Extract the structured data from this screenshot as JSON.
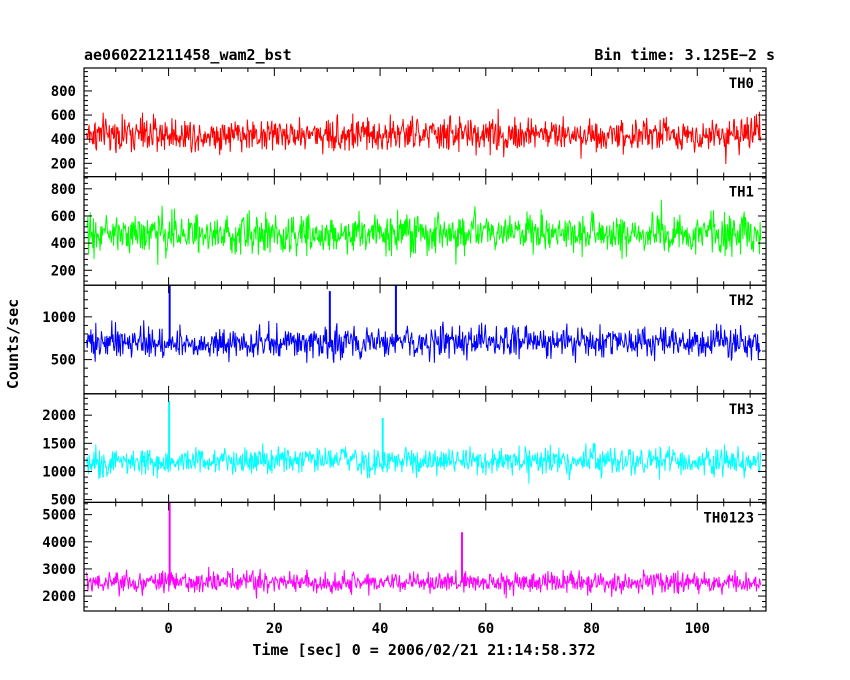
{
  "header": {
    "left_title": "ae060221211458_wam2_bst",
    "right_title": "Bin time: 3.125E−2 s"
  },
  "chart_data": {
    "type": "line",
    "xlabel": "Time [sec] 0 = 2006/02/21 21:14:58.372",
    "ylabel": "Counts/sec",
    "xlim": [
      -16,
      113
    ],
    "x_data_range": [
      -15.5,
      112
    ],
    "x_ticks": [
      0,
      20,
      40,
      60,
      80,
      100
    ],
    "grid": false,
    "panels": [
      {
        "name": "TH0",
        "color": "#ff0000",
        "ylim": [
          90,
          990
        ],
        "y_ticks": [
          200,
          400,
          600,
          800
        ],
        "baseline": 440,
        "noise_amplitude": 190,
        "floor": 100,
        "ceiling": 990,
        "spikes": []
      },
      {
        "name": "TH1",
        "color": "#00ff00",
        "ylim": [
          90,
          890
        ],
        "y_ticks": [
          200,
          400,
          600,
          800
        ],
        "baseline": 470,
        "noise_amplitude": 190,
        "floor": 100,
        "ceiling": 890,
        "spikes": []
      },
      {
        "name": "TH2",
        "color": "#0000ff",
        "ylim": [
          100,
          1370
        ],
        "y_ticks": [
          500,
          1000
        ],
        "baseline": 700,
        "noise_amplitude": 240,
        "floor": 150,
        "ceiling": 1370,
        "spikes": [
          {
            "x": 0.2,
            "y": 1370
          },
          {
            "x": 30.5,
            "y": 1300
          },
          {
            "x": 43.0,
            "y": 1370
          }
        ]
      },
      {
        "name": "TH3",
        "color": "#00ffff",
        "ylim": [
          450,
          2380
        ],
        "y_ticks": [
          500,
          1000,
          1500,
          2000
        ],
        "baseline": 1180,
        "noise_amplitude": 320,
        "floor": 500,
        "ceiling": 2380,
        "spikes": [
          {
            "x": 0.1,
            "y": 2250
          },
          {
            "x": 40.5,
            "y": 1950
          }
        ]
      },
      {
        "name": "TH0123",
        "color": "#ff00ff",
        "ylim": [
          1450,
          5450
        ],
        "y_ticks": [
          2000,
          3000,
          4000,
          5000
        ],
        "baseline": 2500,
        "noise_amplitude": 520,
        "floor": 1550,
        "ceiling": 5450,
        "spikes": [
          {
            "x": 0.2,
            "y": 5450
          },
          {
            "x": 55.5,
            "y": 4350
          }
        ]
      }
    ]
  }
}
